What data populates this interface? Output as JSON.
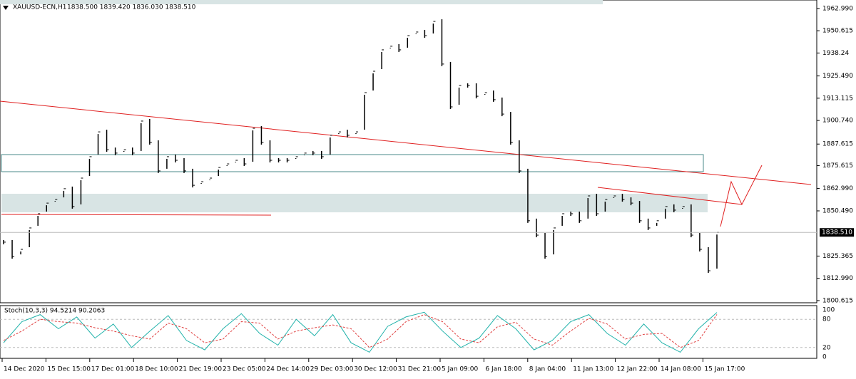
{
  "chart_data": [
    {
      "type": "price",
      "title": "XAUUSD-ECN,H1",
      "ohlc_header": "1838.500 1839.420 1836.030 1838.510",
      "close": [
        1833.1,
        1825.1,
        1829.1,
        1841.0,
        1848.9,
        1854.8,
        1856.8,
        1862.8,
        1852.9,
        1868.7,
        1880.6,
        1894.4,
        1884.5,
        1882.6,
        1884.5,
        1882.6,
        1900.4,
        1888.5,
        1872.7,
        1880.6,
        1878.6,
        1872.7,
        1864.7,
        1866.7,
        1868.7,
        1874.6,
        1876.6,
        1878.6,
        1876.6,
        1896.4,
        1888.5,
        1878.6,
        1878.6,
        1878.6,
        1880.6,
        1882.6,
        1882.6,
        1880.6,
        1892.5,
        1894.4,
        1892.5,
        1894.4,
        1916.2,
        1928.1,
        1940.0,
        1942.0,
        1940.0,
        1947.9,
        1949.9,
        1947.9,
        1955.8,
        1932.1,
        1908.3,
        1920.2,
        1920.2,
        1914.2,
        1916.2,
        1912.3,
        1904.3,
        1888.5,
        1872.7,
        1845.0,
        1837.0,
        1825.1,
        1841.0,
        1848.9,
        1848.9,
        1845.0,
        1858.8,
        1848.9,
        1856.8,
        1858.8,
        1856.8,
        1854.8,
        1845.0,
        1841.0,
        1845.0,
        1852.9,
        1850.9,
        1852.9,
        1837.0,
        1829.1,
        1817.2,
        1838.51
      ],
      "color": "#000000",
      "ylim": [
        1799.4,
        1967.7
      ],
      "yticks": [
        {
          "value": 1962.99,
          "label": "1962.990"
        },
        1950.615,
        1938.24,
        {
          "value": 1925.49,
          "label": "1925.490"
        },
        1913.115,
        {
          "value": 1900.74,
          "label": "1900.740"
        },
        1887.615,
        1875.615,
        {
          "value": 1862.99,
          "label": "1862.990"
        },
        {
          "value": 1850.49,
          "label": "1850.490"
        },
        1825.365,
        {
          "value": 1812.99,
          "label": "1812.990"
        },
        1800.615
      ],
      "last_price": {
        "value": 1838.51,
        "label": "1838.510"
      },
      "x_labels": [
        "14 Dec 2020",
        "15 Dec 15:00",
        "17 Dec 01:00",
        "18 Dec 10:00",
        "21 Dec 19:00",
        "23 Dec 05:00",
        "24 Dec 14:00",
        "29 Dec 03:00",
        "30 Dec 12:00",
        "31 Dec 21:00",
        "5 Jan 09:00",
        "6 Jan 18:00",
        "8 Jan 04:00",
        "11 Jan 13:00",
        "12 Jan 22:00",
        "14 Jan 08:00",
        "15 Jan 17:00"
      ]
    },
    {
      "type": "stoch",
      "title": "Stoch(10,3,3) 94.5214 90.2063",
      "series": [
        {
          "name": "main",
          "color": "#20b2aa",
          "values": [
            30,
            75,
            90,
            60,
            85,
            40,
            70,
            20,
            55,
            88,
            35,
            15,
            60,
            92,
            50,
            25,
            80,
            45,
            90,
            30,
            10,
            65,
            85,
            95,
            55,
            20,
            40,
            88,
            60,
            15,
            35,
            75,
            90,
            50,
            25,
            70,
            30,
            10,
            60,
            94.5214
          ]
        },
        {
          "name": "signal",
          "color": "#e04040",
          "values": [
            35,
            55,
            80,
            75,
            72,
            62,
            55,
            45,
            38,
            72,
            60,
            30,
            38,
            75,
            72,
            38,
            55,
            62,
            68,
            60,
            20,
            38,
            75,
            90,
            75,
            38,
            30,
            64,
            74,
            38,
            25,
            55,
            82,
            70,
            38,
            48,
            50,
            20,
            35,
            90.2063
          ]
        }
      ],
      "ylim": [
        0,
        100
      ],
      "yticks": [
        100,
        80,
        20,
        0
      ]
    }
  ]
}
